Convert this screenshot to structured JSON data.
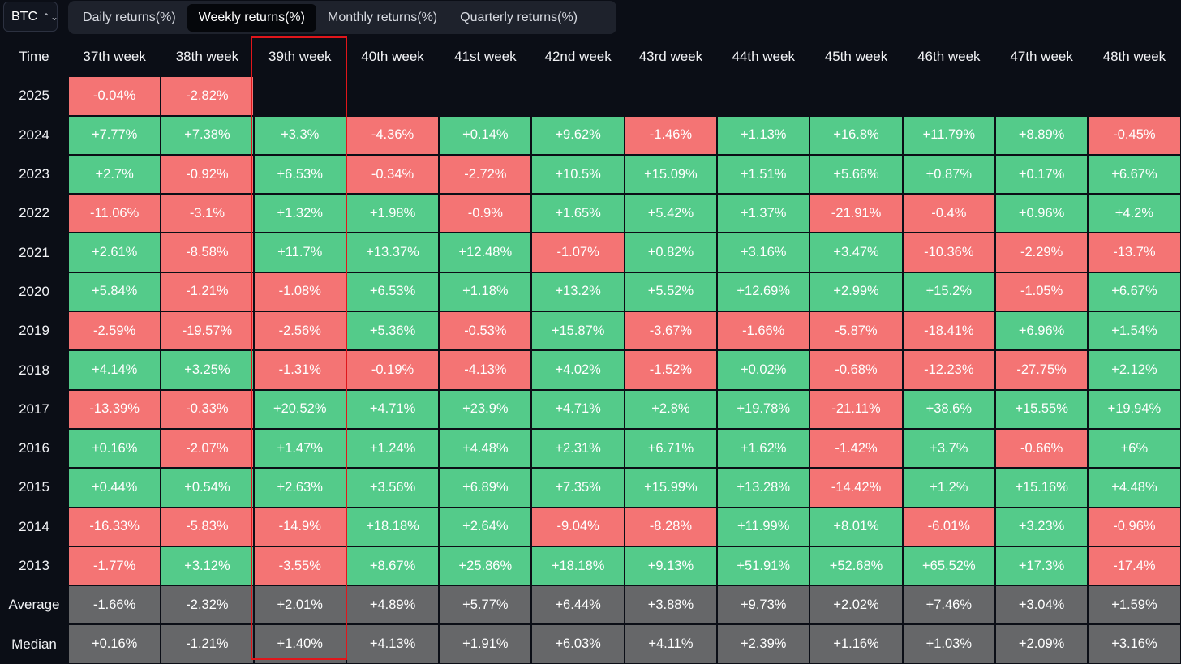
{
  "asset_select": {
    "value": "BTC"
  },
  "tabs": [
    {
      "label": "Daily returns(%)",
      "active": false
    },
    {
      "label": "Weekly returns(%)",
      "active": true
    },
    {
      "label": "Monthly returns(%)",
      "active": false
    },
    {
      "label": "Quarterly returns(%)",
      "active": false
    }
  ],
  "table": {
    "corner_label": "Time",
    "columns": [
      "37th week",
      "38th week",
      "39th week",
      "40th week",
      "41st week",
      "42nd week",
      "43rd week",
      "44th week",
      "45th week",
      "46th week",
      "47th week",
      "48th week"
    ],
    "highlighted_column": "39th week",
    "rows": [
      {
        "label": "2025",
        "values": [
          "-0.04%",
          "-2.82%",
          "",
          "",
          "",
          "",
          "",
          "",
          "",
          "",
          "",
          ""
        ]
      },
      {
        "label": "2024",
        "values": [
          "+7.77%",
          "+7.38%",
          "+3.3%",
          "-4.36%",
          "+0.14%",
          "+9.62%",
          "-1.46%",
          "+1.13%",
          "+16.8%",
          "+11.79%",
          "+8.89%",
          "-0.45%"
        ]
      },
      {
        "label": "2023",
        "values": [
          "+2.7%",
          "-0.92%",
          "+6.53%",
          "-0.34%",
          "-2.72%",
          "+10.5%",
          "+15.09%",
          "+1.51%",
          "+5.66%",
          "+0.87%",
          "+0.17%",
          "+6.67%"
        ]
      },
      {
        "label": "2022",
        "values": [
          "-11.06%",
          "-3.1%",
          "+1.32%",
          "+1.98%",
          "-0.9%",
          "+1.65%",
          "+5.42%",
          "+1.37%",
          "-21.91%",
          "-0.4%",
          "+0.96%",
          "+4.2%"
        ]
      },
      {
        "label": "2021",
        "values": [
          "+2.61%",
          "-8.58%",
          "+11.7%",
          "+13.37%",
          "+12.48%",
          "-1.07%",
          "+0.82%",
          "+3.16%",
          "+3.47%",
          "-10.36%",
          "-2.29%",
          "-13.7%"
        ]
      },
      {
        "label": "2020",
        "values": [
          "+5.84%",
          "-1.21%",
          "-1.08%",
          "+6.53%",
          "+1.18%",
          "+13.2%",
          "+5.52%",
          "+12.69%",
          "+2.99%",
          "+15.2%",
          "-1.05%",
          "+6.67%"
        ]
      },
      {
        "label": "2019",
        "values": [
          "-2.59%",
          "-19.57%",
          "-2.56%",
          "+5.36%",
          "-0.53%",
          "+15.87%",
          "-3.67%",
          "-1.66%",
          "-5.87%",
          "-18.41%",
          "+6.96%",
          "+1.54%"
        ]
      },
      {
        "label": "2018",
        "values": [
          "+4.14%",
          "+3.25%",
          "-1.31%",
          "-0.19%",
          "-4.13%",
          "+4.02%",
          "-1.52%",
          "+0.02%",
          "-0.68%",
          "-12.23%",
          "-27.75%",
          "+2.12%"
        ]
      },
      {
        "label": "2017",
        "values": [
          "-13.39%",
          "-0.33%",
          "+20.52%",
          "+4.71%",
          "+23.9%",
          "+4.71%",
          "+2.8%",
          "+19.78%",
          "-21.11%",
          "+38.6%",
          "+15.55%",
          "+19.94%"
        ]
      },
      {
        "label": "2016",
        "values": [
          "+0.16%",
          "-2.07%",
          "+1.47%",
          "+1.24%",
          "+4.48%",
          "+2.31%",
          "+6.71%",
          "+1.62%",
          "-1.42%",
          "+3.7%",
          "-0.66%",
          "+6%"
        ]
      },
      {
        "label": "2015",
        "values": [
          "+0.44%",
          "+0.54%",
          "+2.63%",
          "+3.56%",
          "+6.89%",
          "+7.35%",
          "+15.99%",
          "+13.28%",
          "-14.42%",
          "+1.2%",
          "+15.16%",
          "+4.48%"
        ]
      },
      {
        "label": "2014",
        "values": [
          "-16.33%",
          "-5.83%",
          "-14.9%",
          "+18.18%",
          "+2.64%",
          "-9.04%",
          "-8.28%",
          "+11.99%",
          "+8.01%",
          "-6.01%",
          "+3.23%",
          "-0.96%"
        ]
      },
      {
        "label": "2013",
        "values": [
          "-1.77%",
          "+3.12%",
          "-3.55%",
          "+8.67%",
          "+25.86%",
          "+18.18%",
          "+9.13%",
          "+51.91%",
          "+52.68%",
          "+65.52%",
          "+17.3%",
          "-17.4%"
        ]
      }
    ],
    "stats": [
      {
        "label": "Average",
        "values": [
          "-1.66%",
          "-2.32%",
          "+2.01%",
          "+4.89%",
          "+5.77%",
          "+6.44%",
          "+3.88%",
          "+9.73%",
          "+2.02%",
          "+7.46%",
          "+3.04%",
          "+1.59%"
        ]
      },
      {
        "label": "Median",
        "values": [
          "+0.16%",
          "-1.21%",
          "+1.40%",
          "+4.13%",
          "+1.91%",
          "+6.03%",
          "+4.11%",
          "+2.39%",
          "+1.16%",
          "+1.03%",
          "+2.09%",
          "+3.16%"
        ]
      }
    ]
  },
  "colors": {
    "positive": "#54cb8a",
    "negative": "#f47474",
    "stat": "#666769",
    "highlight": "#e0161b"
  }
}
